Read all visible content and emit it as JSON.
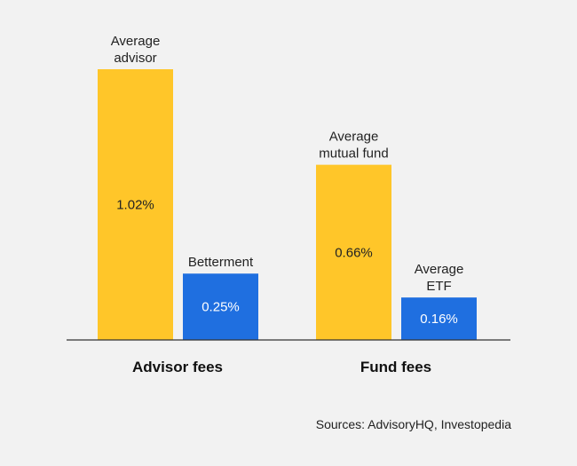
{
  "chart_data": {
    "type": "bar",
    "groups": [
      {
        "label": "Advisor fees",
        "bars": [
          {
            "name_lines": [
              "Average",
              "advisor"
            ],
            "value": 1.02,
            "value_label": "1.02%",
            "color": "#ffc629"
          },
          {
            "name_lines": [
              "Betterment"
            ],
            "value": 0.25,
            "value_label": "0.25%",
            "color": "#1f6fe0"
          }
        ]
      },
      {
        "label": "Fund fees",
        "bars": [
          {
            "name_lines": [
              "Average",
              "mutual fund"
            ],
            "value": 0.66,
            "value_label": "0.66%",
            "color": "#ffc629"
          },
          {
            "name_lines": [
              "Average",
              "ETF"
            ],
            "value": 0.16,
            "value_label": "0.16%",
            "color": "#1f6fe0"
          }
        ]
      }
    ],
    "ylim": [
      0,
      1.02
    ],
    "grid": false,
    "legend": "none"
  },
  "source": "Sources: AdvisoryHQ, Investopedia",
  "colors": {
    "background": "#f2f2f2",
    "baseline": "#333333",
    "text": "#222222"
  }
}
